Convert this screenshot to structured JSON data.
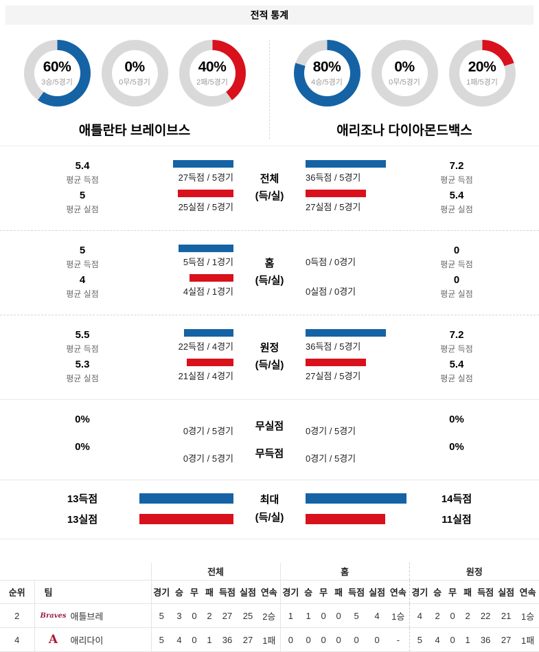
{
  "header": {
    "title": "전적 통계"
  },
  "colors": {
    "blue": "#1563a5",
    "red": "#d8111c",
    "gray": "#d9d9d9"
  },
  "teams": [
    {
      "name": "애틀란타 브레이브스",
      "donuts": [
        {
          "pct": 60,
          "label": "60%",
          "sub": "3승/5경기",
          "color": "blue"
        },
        {
          "pct": 0,
          "label": "0%",
          "sub": "0무/5경기",
          "color": "gray"
        },
        {
          "pct": 40,
          "label": "40%",
          "sub": "2패/5경기",
          "color": "red"
        }
      ]
    },
    {
      "name": "애리조나 다이아몬드백스",
      "donuts": [
        {
          "pct": 80,
          "label": "80%",
          "sub": "4승/5경기",
          "color": "blue"
        },
        {
          "pct": 0,
          "label": "0%",
          "sub": "0무/5경기",
          "color": "gray"
        },
        {
          "pct": 20,
          "label": "20%",
          "sub": "1패/5경기",
          "color": "red"
        }
      ]
    }
  ],
  "sections": [
    {
      "center_top": "전체",
      "center_bottom": "(득/실)",
      "bar_scale": 3.25,
      "rows": [
        {
          "left_value": "5.4",
          "left_label": "평균 득점",
          "left_bar": {
            "points": 27,
            "color": "blue"
          },
          "left_caption": "27득점 / 5경기",
          "right_bar": {
            "points": 36,
            "color": "blue"
          },
          "right_caption": "36득점 / 5경기",
          "right_value": "7.2",
          "right_label": "평균 득점"
        },
        {
          "left_value": "5",
          "left_label": "평균 실점",
          "left_bar": {
            "points": 25,
            "color": "red"
          },
          "left_caption": "25실점 / 5경기",
          "right_bar": {
            "points": 27,
            "color": "red"
          },
          "right_caption": "27실점 / 5경기",
          "right_value": "5.4",
          "right_label": "평균 실점"
        }
      ]
    },
    {
      "center_top": "홈",
      "center_bottom": "(득/실)",
      "bar_scale": 16,
      "rows": [
        {
          "left_value": "5",
          "left_label": "평균 득점",
          "left_bar": {
            "points": 5,
            "color": "blue"
          },
          "left_caption": "5득점 / 1경기",
          "right_bar": {
            "points": 0,
            "color": "blue"
          },
          "right_caption": "0득점 / 0경기",
          "right_value": "0",
          "right_label": "평균 득점"
        },
        {
          "left_value": "4",
          "left_label": "평균 실점",
          "left_bar": {
            "points": 4,
            "color": "red"
          },
          "left_caption": "4실점 / 1경기",
          "right_bar": {
            "points": 0,
            "color": "red"
          },
          "right_caption": "0실점 / 0경기",
          "right_value": "0",
          "right_label": "평균 실점"
        }
      ]
    },
    {
      "center_top": "원정",
      "center_bottom": "(득/실)",
      "bar_scale": 3.25,
      "rows": [
        {
          "left_value": "5.5",
          "left_label": "평균 득점",
          "left_bar": {
            "points": 22,
            "color": "blue"
          },
          "left_caption": "22득점 / 4경기",
          "right_bar": {
            "points": 36,
            "color": "blue"
          },
          "right_caption": "36득점 / 5경기",
          "right_value": "7.2",
          "right_label": "평균 득점"
        },
        {
          "left_value": "5.3",
          "left_label": "평균 실점",
          "left_bar": {
            "points": 21,
            "color": "red"
          },
          "left_caption": "21실점 / 4경기",
          "right_bar": {
            "points": 27,
            "color": "red"
          },
          "right_caption": "27실점 / 5경기",
          "right_value": "5.4",
          "right_label": "평균 실점"
        }
      ]
    },
    {
      "bar_scale": 1,
      "rows": [
        {
          "left_value": "0%",
          "left_bar": {
            "points": 0
          },
          "left_caption": "0경기 / 5경기",
          "center": "무실점",
          "right_bar": {
            "points": 0
          },
          "right_caption": "0경기 / 5경기",
          "right_value": "0%"
        },
        {
          "left_value": "0%",
          "left_bar": {
            "points": 0
          },
          "left_caption": "0경기 / 5경기",
          "center": "무득점",
          "right_bar": {
            "points": 0
          },
          "right_caption": "0경기 / 5경기",
          "right_value": "0%"
        }
      ]
    },
    {
      "center_top": "최대",
      "center_bottom": "(득/실)",
      "bar_scale": 10.5,
      "rows": [
        {
          "left_label": "13득점",
          "left_bar": {
            "points": 13,
            "color": "blue"
          },
          "right_bar": {
            "points": 14,
            "color": "blue"
          },
          "right_label": "14득점"
        },
        {
          "left_label": "13실점",
          "left_bar": {
            "points": 13,
            "color": "red"
          },
          "right_bar": {
            "points": 11,
            "color": "red"
          },
          "right_label": "11실점"
        }
      ]
    }
  ],
  "table": {
    "corner_headers": [
      "순위",
      "팀"
    ],
    "groups": [
      "전체",
      "홈",
      "원정"
    ],
    "col_headers": [
      "경기",
      "승",
      "무",
      "패",
      "득점",
      "실점",
      "연속"
    ],
    "rows": [
      {
        "rank": "2",
        "logo_text": "Braves",
        "name": "애틀브레",
        "total": [
          "5",
          "3",
          "0",
          "2",
          "27",
          "25",
          "2승"
        ],
        "home": [
          "1",
          "1",
          "0",
          "0",
          "5",
          "4",
          "1승"
        ],
        "away": [
          "4",
          "2",
          "0",
          "2",
          "22",
          "21",
          "1승"
        ]
      },
      {
        "rank": "4",
        "logo_text": "A",
        "name": "애리다이",
        "total": [
          "5",
          "4",
          "0",
          "1",
          "36",
          "27",
          "1패"
        ],
        "home": [
          "0",
          "0",
          "0",
          "0",
          "0",
          "0",
          "-"
        ],
        "away": [
          "5",
          "4",
          "0",
          "1",
          "36",
          "27",
          "1패"
        ]
      }
    ]
  },
  "chart_data": [
    {
      "type": "pie",
      "title": "애틀란타 브레이브스 전적",
      "categories": [
        "승",
        "무",
        "패"
      ],
      "values": [
        60,
        0,
        40
      ],
      "unit": "%",
      "counts": [
        "3승/5경기",
        "0무/5경기",
        "2패/5경기"
      ]
    },
    {
      "type": "pie",
      "title": "애리조나 다이아몬드백스 전적",
      "categories": [
        "승",
        "무",
        "패"
      ],
      "values": [
        80,
        0,
        20
      ],
      "unit": "%",
      "counts": [
        "4승/5경기",
        "0무/5경기",
        "1패/5경기"
      ]
    },
    {
      "type": "bar",
      "title": "전체 (득/실)",
      "categories": [
        "득점",
        "실점"
      ],
      "series": [
        {
          "name": "애틀란타 브레이브스",
          "values": [
            27,
            25
          ]
        },
        {
          "name": "애리조나 다이아몬드백스",
          "values": [
            36,
            27
          ]
        }
      ]
    },
    {
      "type": "bar",
      "title": "홈 (득/실)",
      "categories": [
        "득점",
        "실점"
      ],
      "series": [
        {
          "name": "애틀란타 브레이브스",
          "values": [
            5,
            4
          ]
        },
        {
          "name": "애리조나 다이아몬드백스",
          "values": [
            0,
            0
          ]
        }
      ]
    },
    {
      "type": "bar",
      "title": "원정 (득/실)",
      "categories": [
        "득점",
        "실점"
      ],
      "series": [
        {
          "name": "애틀란타 브레이브스",
          "values": [
            22,
            21
          ]
        },
        {
          "name": "애리조나 다이아몬드백스",
          "values": [
            36,
            27
          ]
        }
      ]
    },
    {
      "type": "bar",
      "title": "최대 (득/실)",
      "categories": [
        "득점",
        "실점"
      ],
      "series": [
        {
          "name": "애틀란타 브레이브스",
          "values": [
            13,
            13
          ]
        },
        {
          "name": "애리조나 다이아몬드백스",
          "values": [
            14,
            11
          ]
        }
      ]
    }
  ]
}
